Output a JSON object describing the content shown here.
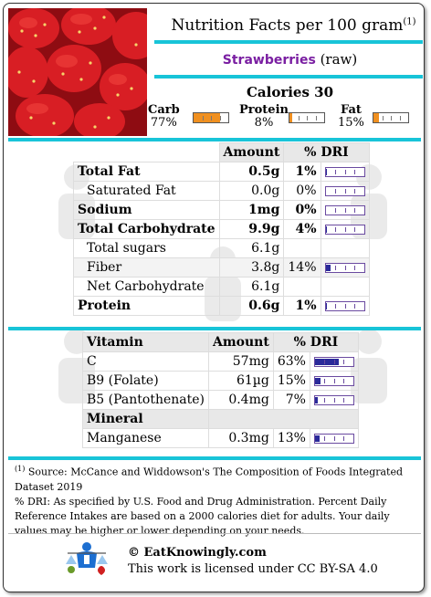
{
  "header": {
    "title": "Nutrition Facts per 100 gram",
    "footnote_mark": "(1)",
    "food_name": "Strawberries",
    "food_qualifier": "(raw)",
    "calories_label": "Calories 30"
  },
  "macros": [
    {
      "name": "Carb",
      "pct": "77%",
      "fraction": 0.77
    },
    {
      "name": "Protein",
      "pct": "8%",
      "fraction": 0.08
    },
    {
      "name": "Fat",
      "pct": "15%",
      "fraction": 0.15
    }
  ],
  "colors": {
    "accent": "#18c4d8",
    "food_name": "#7a1fa2",
    "macro_fill": "#f09020",
    "dri_fill": "#2a2a9a"
  },
  "nutrients": {
    "headers": {
      "amount": "Amount",
      "dri": "% DRI"
    },
    "rows": [
      {
        "label": "Total Fat",
        "amount": "0.5g",
        "dri": "1%",
        "fraction": 0.01
      },
      {
        "label": "Saturated Fat",
        "amount": "0.0g",
        "dri": "0%",
        "fraction": 0.0
      },
      {
        "label": "Sodium",
        "amount": "1mg",
        "dri": "0%",
        "fraction": 0.0
      },
      {
        "label": "Total Carbohydrate",
        "amount": "9.9g",
        "dri": "4%",
        "fraction": 0.04
      },
      {
        "label": "Total sugars",
        "amount": "6.1g",
        "dri": ""
      },
      {
        "label": "Fiber",
        "amount": "3.8g",
        "dri": "14%",
        "fraction": 0.14
      },
      {
        "label": "Net Carbohydrate",
        "amount": "6.1g",
        "dri": ""
      },
      {
        "label": "Protein",
        "amount": "0.6g",
        "dri": "1%",
        "fraction": 0.01
      }
    ]
  },
  "vitamins": {
    "headers": {
      "name": "Vitamin",
      "amount": "Amount",
      "dri": "% DRI"
    },
    "rows": [
      {
        "label": "C",
        "amount": "57mg",
        "dri": "63%",
        "fraction": 0.63
      },
      {
        "label": "B9 (Folate)",
        "amount": "61µg",
        "dri": "15%",
        "fraction": 0.15
      },
      {
        "label": "B5 (Pantothenate)",
        "amount": "0.4mg",
        "dri": "7%",
        "fraction": 0.07
      }
    ],
    "mineral_header": "Mineral",
    "mineral_rows": [
      {
        "label": "Manganese",
        "amount": "0.3mg",
        "dri": "13%",
        "fraction": 0.13
      }
    ]
  },
  "footnote": {
    "mark": "(1)",
    "source": " Source: McCance and Widdowson's The Composition of Foods Integrated Dataset 2019",
    "dri_note": "% DRI: As specified by U.S. Food and Drug Administration. Percent Daily Reference Intakes are based on a 2000 calories diet for adults. Your daily values may be higher or lower depending on your needs."
  },
  "footer": {
    "site": "© EatKnowingly.com",
    "license": "This work is licensed under CC BY-SA 4.0"
  }
}
